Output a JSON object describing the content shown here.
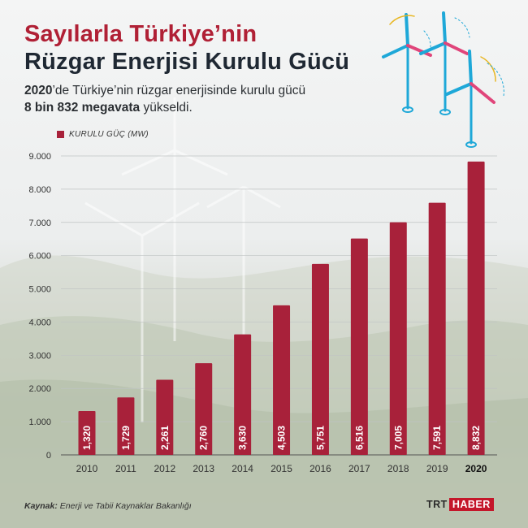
{
  "header": {
    "title_line1": "Sayılarla Türkiye’nin",
    "title_line2": "Rüzgar Enerjisi Kurulu Gücü",
    "subtitle_part1": "2020",
    "subtitle_part2": "’de Türkiye’nin rüzgar enerjisinde kurulu gücü",
    "subtitle_part3": "8 bin 832 megavata",
    "subtitle_part4": " yükseldi."
  },
  "colors": {
    "bar": "#a8213a",
    "title_red": "#b02035",
    "title_dark": "#1f2833",
    "icon_blue": "#1ea8d8",
    "icon_pink": "#e0457a"
  },
  "chart_data": {
    "type": "bar",
    "categories": [
      "2010",
      "2011",
      "2012",
      "2013",
      "2014",
      "2015",
      "2016",
      "2017",
      "2018",
      "2019",
      "2020"
    ],
    "series": [
      {
        "name": "KURULU GÜÇ (MW)",
        "values": [
          1320,
          1729,
          2261,
          2760,
          3630,
          4503,
          5751,
          6516,
          7005,
          7591,
          8832
        ]
      }
    ],
    "data_labels": [
      "1,320",
      "1,729",
      "2,261",
      "2,760",
      "3,630",
      "4,503",
      "5,751",
      "6,516",
      "7,005",
      "7,591",
      "8,832"
    ],
    "y_ticks": [
      0,
      1000,
      2000,
      3000,
      4000,
      5000,
      6000,
      7000,
      8000,
      9000
    ],
    "y_tick_labels": [
      "0",
      "1.000",
      "2.000",
      "3.000",
      "4.000",
      "5.000",
      "6.000",
      "7.000",
      "8.000",
      "9.000"
    ],
    "ylim": [
      0,
      9000
    ],
    "highlight_category": "2020",
    "legend_position": "top-left",
    "grid": true
  },
  "source": {
    "label": "Kaynak:",
    "text": " Enerji ve Tabii Kaynaklar Bakanlığı"
  },
  "logo": {
    "part1": "TRT",
    "part2": "HABER"
  }
}
